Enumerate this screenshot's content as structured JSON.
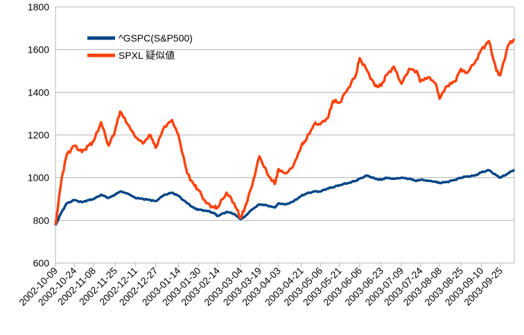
{
  "chart_data": {
    "type": "line",
    "title": "",
    "xlabel": "",
    "ylabel": "",
    "ylim": [
      600,
      1800
    ],
    "y_ticks": [
      600,
      800,
      1000,
      1200,
      1400,
      1600,
      1800
    ],
    "grid": true,
    "legend_position": "top-left",
    "x_tick_labels": [
      "2002-10-09",
      "2002-10-24",
      "2002-11-08",
      "2002-11-25",
      "2002-12-11",
      "2002-12-27",
      "2003-01-14",
      "2003-01-30",
      "2003-02-14",
      "2003-03-04",
      "2003-03-19",
      "2003-04-03",
      "2003-04-21",
      "2003-05-06",
      "2003-05-21",
      "2003-06-06",
      "2003-06-23",
      "2003-07-09",
      "2003-07-24",
      "2003-08-08",
      "2003-08-25",
      "2003-09-10",
      "2003-09-25"
    ],
    "x": [
      "2002-10-09",
      "2002-10-14",
      "2002-10-18",
      "2002-10-24",
      "2002-10-30",
      "2002-11-04",
      "2002-11-08",
      "2002-11-14",
      "2002-11-20",
      "2002-11-25",
      "2002-11-29",
      "2002-12-05",
      "2002-12-11",
      "2002-12-17",
      "2002-12-23",
      "2002-12-27",
      "2003-01-03",
      "2003-01-09",
      "2003-01-14",
      "2003-01-21",
      "2003-01-27",
      "2003-01-30",
      "2003-02-05",
      "2003-02-11",
      "2003-02-14",
      "2003-02-21",
      "2003-02-27",
      "2003-03-04",
      "2003-03-07",
      "2003-03-13",
      "2003-03-19",
      "2003-03-25",
      "2003-03-31",
      "2003-04-03",
      "2003-04-09",
      "2003-04-15",
      "2003-04-21",
      "2003-04-25",
      "2003-05-01",
      "2003-05-06",
      "2003-05-12",
      "2003-05-16",
      "2003-05-21",
      "2003-05-28",
      "2003-06-03",
      "2003-06-06",
      "2003-06-12",
      "2003-06-18",
      "2003-06-23",
      "2003-06-27",
      "2003-07-03",
      "2003-07-09",
      "2003-07-15",
      "2003-07-21",
      "2003-07-24",
      "2003-07-30",
      "2003-08-05",
      "2003-08-08",
      "2003-08-14",
      "2003-08-20",
      "2003-08-25",
      "2003-08-29",
      "2003-09-05",
      "2003-09-10",
      "2003-09-16",
      "2003-09-22",
      "2003-09-25",
      "2003-10-01",
      "2003-10-06"
    ],
    "series": [
      {
        "name": "^GSPC(S&P500)",
        "color": "#004586",
        "values": [
          777,
          840,
          880,
          895,
          885,
          895,
          900,
          920,
          905,
          920,
          935,
          925,
          905,
          900,
          895,
          890,
          920,
          930,
          915,
          880,
          855,
          850,
          845,
          835,
          820,
          840,
          830,
          805,
          815,
          850,
          875,
          870,
          860,
          880,
          875,
          890,
          915,
          925,
          935,
          935,
          950,
          955,
          965,
          975,
          985,
          995,
          1010,
          995,
          990,
          1000,
          995,
          1000,
          995,
          985,
          990,
          985,
          980,
          975,
          980,
          990,
          1000,
          1005,
          1010,
          1025,
          1035,
          1010,
          1000,
          1020,
          1038
        ]
      },
      {
        "name": "SPXL 疑似値",
        "color": "#ff420e",
        "values": [
          779,
          1000,
          1110,
          1150,
          1120,
          1150,
          1170,
          1260,
          1150,
          1220,
          1310,
          1250,
          1190,
          1160,
          1200,
          1140,
          1240,
          1270,
          1200,
          1020,
          960,
          940,
          880,
          860,
          860,
          930,
          880,
          810,
          850,
          960,
          1100,
          1020,
          970,
          1040,
          1020,
          1060,
          1150,
          1180,
          1250,
          1250,
          1280,
          1360,
          1350,
          1420,
          1480,
          1560,
          1500,
          1430,
          1430,
          1480,
          1520,
          1440,
          1510,
          1500,
          1450,
          1470,
          1440,
          1370,
          1430,
          1450,
          1510,
          1490,
          1540,
          1600,
          1640,
          1500,
          1480,
          1620,
          1650
        ]
      }
    ]
  }
}
